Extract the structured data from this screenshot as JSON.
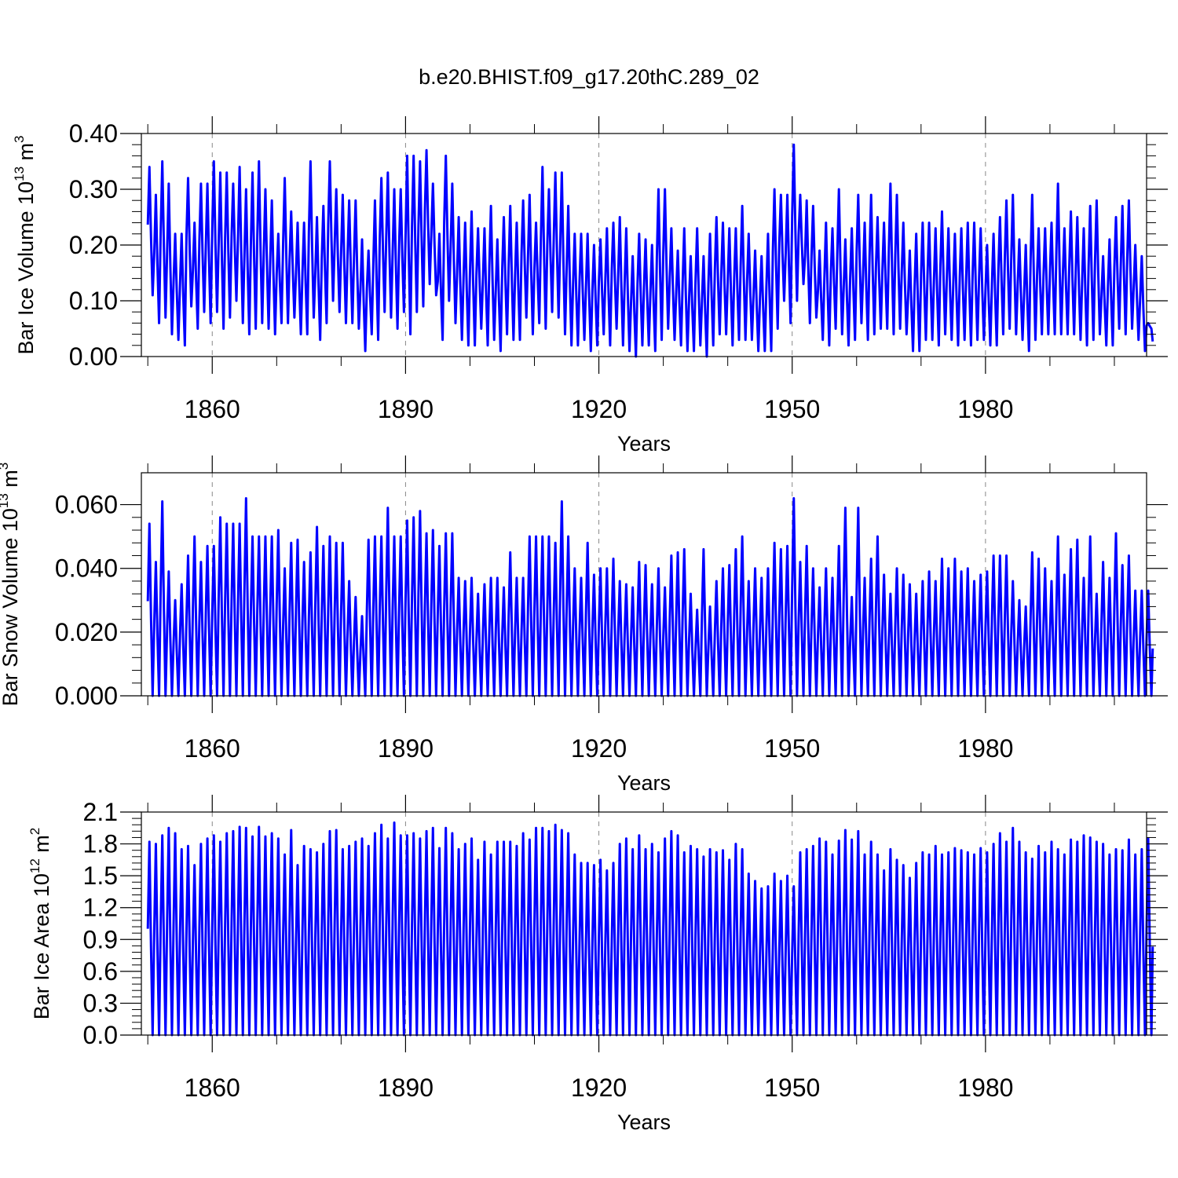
{
  "figure_title": "b.e20.BHIST.f09_g17.20thC.289_02",
  "colors": {
    "series": "#0000ff",
    "axis": "#000000",
    "grid": "#888888"
  },
  "chart_data": [
    {
      "type": "line",
      "ylabel": "Bar Ice Volume 10",
      "ylabel_sup1": "13",
      "ylabel_mid": " m",
      "ylabel_sup2": "3",
      "xlabel": "Years",
      "xlim": [
        1849,
        2005
      ],
      "ylim": [
        0,
        0.4
      ],
      "y_ticks": [
        0,
        0.1,
        0.2,
        0.3,
        0.4
      ],
      "y_tick_labels": [
        "0.00",
        "0.10",
        "0.20",
        "0.30",
        "0.40"
      ],
      "x_ticks": [
        1860,
        1890,
        1920,
        1950,
        1980
      ],
      "x_tick_labels": [
        "1860",
        "1890",
        "1920",
        "1950",
        "1980"
      ],
      "grid": "dashed vertical at labeled years",
      "series": [
        {
          "x_start": 1850,
          "x_end": 2005,
          "annual_max": [
            0.34,
            0.29,
            0.35,
            0.31,
            0.22,
            0.22,
            0.32,
            0.24,
            0.31,
            0.31,
            0.35,
            0.33,
            0.33,
            0.31,
            0.34,
            0.3,
            0.33,
            0.35,
            0.3,
            0.28,
            0.22,
            0.32,
            0.26,
            0.24,
            0.24,
            0.35,
            0.25,
            0.27,
            0.35,
            0.3,
            0.29,
            0.28,
            0.28,
            0.21,
            0.19,
            0.28,
            0.32,
            0.33,
            0.3,
            0.3,
            0.36,
            0.36,
            0.35,
            0.37,
            0.31,
            0.22,
            0.36,
            0.31,
            0.25,
            0.24,
            0.26,
            0.23,
            0.23,
            0.27,
            0.21,
            0.25,
            0.27,
            0.24,
            0.28,
            0.29,
            0.24,
            0.34,
            0.3,
            0.33,
            0.33,
            0.27,
            0.22,
            0.22,
            0.22,
            0.2,
            0.21,
            0.23,
            0.24,
            0.25,
            0.23,
            0.18,
            0.22,
            0.21,
            0.2,
            0.3,
            0.3,
            0.23,
            0.19,
            0.23,
            0.18,
            0.23,
            0.18,
            0.22,
            0.25,
            0.24,
            0.23,
            0.23,
            0.27,
            0.22,
            0.19,
            0.18,
            0.22,
            0.3,
            0.29,
            0.29,
            0.38,
            0.29,
            0.28,
            0.27,
            0.19,
            0.24,
            0.23,
            0.3,
            0.21,
            0.23,
            0.29,
            0.24,
            0.29,
            0.25,
            0.24,
            0.31,
            0.29,
            0.24,
            0.19,
            0.22,
            0.24,
            0.24,
            0.23,
            0.26,
            0.23,
            0.22,
            0.23,
            0.24,
            0.24,
            0.23,
            0.2,
            0.22,
            0.25,
            0.28,
            0.29,
            0.21,
            0.2,
            0.29,
            0.23,
            0.23,
            0.24,
            0.31,
            0.23,
            0.26,
            0.25,
            0.23,
            0.27,
            0.28,
            0.18,
            0.21,
            0.25,
            0.27,
            0.28,
            0.2,
            0.18,
            0.06
          ],
          "annual_min": [
            0.11,
            0.06,
            0.07,
            0.04,
            0.03,
            0.02,
            0.09,
            0.05,
            0.08,
            0.06,
            0.08,
            0.05,
            0.07,
            0.1,
            0.06,
            0.04,
            0.05,
            0.06,
            0.05,
            0.04,
            0.06,
            0.06,
            0.07,
            0.04,
            0.04,
            0.07,
            0.03,
            0.06,
            0.1,
            0.08,
            0.06,
            0.06,
            0.05,
            0.01,
            0.04,
            0.03,
            0.08,
            0.07,
            0.05,
            0.08,
            0.04,
            0.08,
            0.09,
            0.13,
            0.11,
            0.03,
            0.1,
            0.06,
            0.03,
            0.02,
            0.02,
            0.05,
            0.02,
            0.03,
            0.01,
            0.04,
            0.03,
            0.03,
            0.07,
            0.04,
            0.06,
            0.05,
            0.08,
            0.07,
            0.04,
            0.02,
            0.02,
            0.03,
            0.01,
            0.02,
            0.04,
            0.02,
            0.05,
            0.02,
            0.01,
            0.0,
            0.02,
            0.02,
            0.01,
            0.03,
            0.05,
            0.03,
            0.02,
            0.01,
            0.01,
            0.02,
            0.0,
            0.02,
            0.04,
            0.04,
            0.02,
            0.03,
            0.03,
            0.03,
            0.01,
            0.01,
            0.01,
            0.05,
            0.1,
            0.06,
            0.1,
            0.13,
            0.06,
            0.07,
            0.03,
            0.02,
            0.05,
            0.04,
            0.02,
            0.03,
            0.06,
            0.03,
            0.04,
            0.05,
            0.05,
            0.04,
            0.05,
            0.04,
            0.01,
            0.01,
            0.03,
            0.03,
            0.02,
            0.04,
            0.03,
            0.02,
            0.03,
            0.02,
            0.03,
            0.03,
            0.02,
            0.02,
            0.04,
            0.05,
            0.04,
            0.03,
            0.01,
            0.03,
            0.04,
            0.04,
            0.04,
            0.04,
            0.04,
            0.04,
            0.03,
            0.02,
            0.03,
            0.04,
            0.02,
            0.02,
            0.05,
            0.04,
            0.05,
            0.03,
            0.01,
            0.05
          ]
        }
      ]
    },
    {
      "type": "line",
      "ylabel": "Bar Snow Volume 10",
      "ylabel_sup1": "13",
      "ylabel_mid": " m",
      "ylabel_sup2": "3",
      "xlabel": "Years",
      "xlim": [
        1849,
        2005
      ],
      "ylim": [
        0,
        0.07
      ],
      "y_ticks": [
        0,
        0.02,
        0.04,
        0.06
      ],
      "y_tick_labels": [
        "0.000",
        "0.020",
        "0.040",
        "0.060"
      ],
      "x_ticks": [
        1860,
        1890,
        1920,
        1950,
        1980
      ],
      "x_tick_labels": [
        "1860",
        "1890",
        "1920",
        "1950",
        "1980"
      ],
      "grid": "dashed vertical at labeled years",
      "series": [
        {
          "x_start": 1850,
          "x_end": 2005,
          "annual_max": [
            0.054,
            0.042,
            0.061,
            0.039,
            0.03,
            0.035,
            0.044,
            0.05,
            0.042,
            0.047,
            0.047,
            0.056,
            0.054,
            0.054,
            0.054,
            0.062,
            0.05,
            0.05,
            0.05,
            0.05,
            0.052,
            0.04,
            0.048,
            0.049,
            0.042,
            0.045,
            0.053,
            0.047,
            0.05,
            0.048,
            0.048,
            0.036,
            0.031,
            0.025,
            0.049,
            0.05,
            0.05,
            0.059,
            0.05,
            0.05,
            0.055,
            0.056,
            0.058,
            0.051,
            0.052,
            0.047,
            0.051,
            0.051,
            0.037,
            0.036,
            0.037,
            0.032,
            0.035,
            0.037,
            0.037,
            0.034,
            0.045,
            0.037,
            0.037,
            0.05,
            0.05,
            0.05,
            0.05,
            0.048,
            0.061,
            0.05,
            0.04,
            0.037,
            0.048,
            0.038,
            0.04,
            0.04,
            0.043,
            0.036,
            0.035,
            0.034,
            0.042,
            0.041,
            0.035,
            0.04,
            0.034,
            0.044,
            0.045,
            0.046,
            0.032,
            0.027,
            0.046,
            0.028,
            0.036,
            0.04,
            0.041,
            0.046,
            0.05,
            0.036,
            0.04,
            0.037,
            0.04,
            0.048,
            0.046,
            0.047,
            0.062,
            0.042,
            0.047,
            0.04,
            0.034,
            0.04,
            0.037,
            0.047,
            0.059,
            0.031,
            0.059,
            0.037,
            0.043,
            0.05,
            0.038,
            0.032,
            0.04,
            0.038,
            0.035,
            0.032,
            0.036,
            0.039,
            0.036,
            0.043,
            0.04,
            0.043,
            0.039,
            0.04,
            0.036,
            0.038,
            0.039,
            0.044,
            0.044,
            0.044,
            0.036,
            0.03,
            0.028,
            0.045,
            0.043,
            0.04,
            0.036,
            0.05,
            0.038,
            0.046,
            0.049,
            0.037,
            0.05,
            0.032,
            0.042,
            0.037,
            0.051,
            0.041,
            0.044,
            0.033,
            0.033,
            0.033
          ]
        }
      ]
    },
    {
      "type": "line",
      "ylabel": "Bar Ice Area 10",
      "ylabel_sup1": "12",
      "ylabel_mid": " m",
      "ylabel_sup2": "2",
      "xlabel": "Years",
      "xlim": [
        1849,
        2005
      ],
      "ylim": [
        0,
        2.1
      ],
      "y_ticks": [
        0,
        0.3,
        0.6,
        0.9,
        1.2,
        1.5,
        1.8,
        2.1
      ],
      "y_tick_labels": [
        "0.0",
        "0.3",
        "0.6",
        "0.9",
        "1.2",
        "1.5",
        "1.8",
        "2.1"
      ],
      "x_ticks": [
        1860,
        1890,
        1920,
        1950,
        1980
      ],
      "x_tick_labels": [
        "1860",
        "1890",
        "1920",
        "1950",
        "1980"
      ],
      "grid": "dashed vertical at labeled years",
      "series": [
        {
          "x_start": 1850,
          "x_end": 2005,
          "annual_max": [
            1.82,
            1.8,
            1.88,
            1.95,
            1.9,
            1.75,
            1.78,
            1.6,
            1.8,
            1.85,
            1.88,
            1.82,
            1.9,
            1.92,
            1.96,
            1.95,
            1.87,
            1.96,
            1.87,
            1.9,
            1.85,
            1.7,
            1.93,
            1.6,
            1.78,
            1.75,
            1.72,
            1.8,
            1.92,
            1.93,
            1.75,
            1.78,
            1.82,
            1.85,
            1.78,
            1.9,
            1.98,
            1.85,
            2.0,
            1.88,
            1.88,
            1.9,
            1.85,
            1.92,
            1.95,
            1.76,
            1.95,
            1.9,
            1.75,
            1.8,
            1.85,
            1.65,
            1.82,
            1.7,
            1.82,
            1.82,
            1.82,
            1.78,
            1.9,
            1.84,
            1.95,
            1.95,
            1.92,
            1.98,
            1.93,
            1.9,
            1.7,
            1.62,
            1.62,
            1.6,
            1.65,
            1.55,
            1.62,
            1.8,
            1.85,
            1.75,
            1.88,
            1.75,
            1.8,
            1.72,
            1.85,
            1.92,
            1.88,
            1.72,
            1.78,
            1.75,
            1.68,
            1.75,
            1.72,
            1.74,
            1.65,
            1.8,
            1.75,
            1.52,
            1.45,
            1.38,
            1.4,
            1.52,
            1.45,
            1.5,
            1.4,
            1.72,
            1.75,
            1.78,
            1.85,
            1.82,
            1.7,
            1.83,
            1.93,
            1.84,
            1.92,
            1.7,
            1.82,
            1.7,
            1.55,
            1.75,
            1.65,
            1.6,
            1.48,
            1.62,
            1.72,
            1.7,
            1.78,
            1.7,
            1.72,
            1.76,
            1.74,
            1.72,
            1.7,
            1.76,
            1.72,
            1.8,
            1.9,
            1.82,
            1.95,
            1.82,
            1.72,
            1.66,
            1.78,
            1.72,
            1.82,
            1.75,
            1.7,
            1.84,
            1.82,
            1.88,
            1.86,
            1.82,
            1.8,
            1.7,
            1.75,
            1.74,
            1.84,
            1.7,
            1.75,
            1.85
          ]
        }
      ]
    }
  ]
}
